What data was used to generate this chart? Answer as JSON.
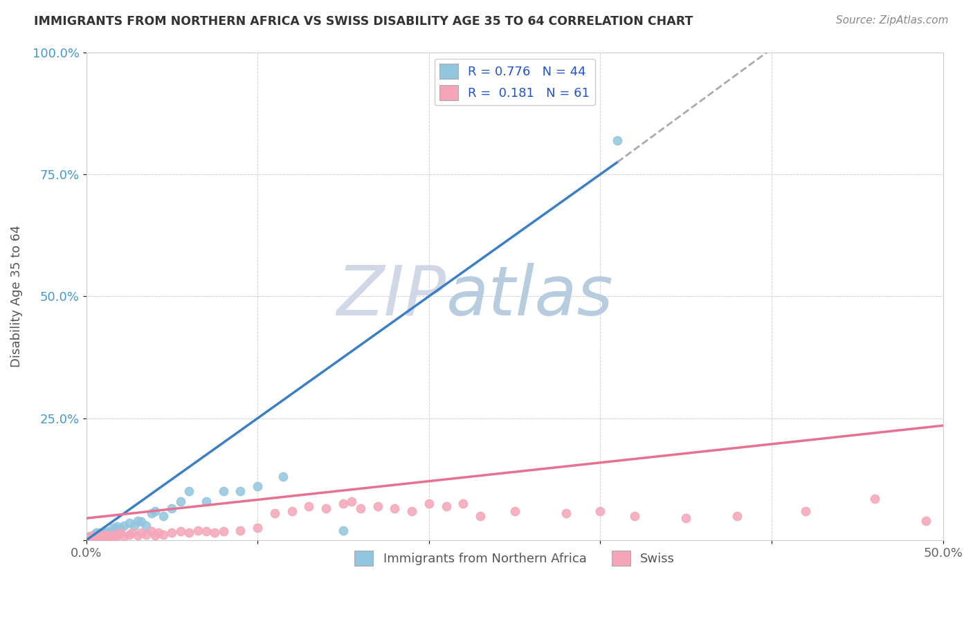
{
  "title": "IMMIGRANTS FROM NORTHERN AFRICA VS SWISS DISABILITY AGE 35 TO 64 CORRELATION CHART",
  "source": "Source: ZipAtlas.com",
  "ylabel": "Disability Age 35 to 64",
  "xlim": [
    0,
    0.5
  ],
  "ylim": [
    0,
    1.0
  ],
  "xtick_positions": [
    0.0,
    0.1,
    0.2,
    0.3,
    0.4,
    0.5
  ],
  "xtick_labels": [
    "0.0%",
    "",
    "",
    "",
    "",
    "50.0%"
  ],
  "ytick_positions": [
    0.0,
    0.25,
    0.5,
    0.75,
    1.0
  ],
  "ytick_labels": [
    "",
    "25.0%",
    "50.0%",
    "75.0%",
    "100.0%"
  ],
  "series1_R": 0.776,
  "series1_N": 44,
  "series2_R": 0.181,
  "series2_N": 61,
  "series1_color": "#92C5DE",
  "series2_color": "#F4A6B8",
  "series1_line_color": "#3A7EC6",
  "series2_line_color": "#E87090",
  "series1_line_intercept": -0.025,
  "series1_line_slope": 2.58,
  "series2_line_intercept": 0.045,
  "series2_line_slope": 0.38,
  "series1_scatter": [
    [
      0.001,
      0.005
    ],
    [
      0.002,
      0.005
    ],
    [
      0.002,
      0.008
    ],
    [
      0.003,
      0.005
    ],
    [
      0.003,
      0.008
    ],
    [
      0.004,
      0.005
    ],
    [
      0.004,
      0.01
    ],
    [
      0.005,
      0.005
    ],
    [
      0.005,
      0.01
    ],
    [
      0.006,
      0.008
    ],
    [
      0.006,
      0.015
    ],
    [
      0.007,
      0.01
    ],
    [
      0.007,
      0.015
    ],
    [
      0.008,
      0.005
    ],
    [
      0.008,
      0.012
    ],
    [
      0.009,
      0.01
    ],
    [
      0.01,
      0.008
    ],
    [
      0.01,
      0.015
    ],
    [
      0.012,
      0.015
    ],
    [
      0.013,
      0.018
    ],
    [
      0.015,
      0.018
    ],
    [
      0.016,
      0.025
    ],
    [
      0.017,
      0.02
    ],
    [
      0.018,
      0.028
    ],
    [
      0.02,
      0.022
    ],
    [
      0.022,
      0.03
    ],
    [
      0.025,
      0.035
    ],
    [
      0.028,
      0.03
    ],
    [
      0.03,
      0.04
    ],
    [
      0.032,
      0.038
    ],
    [
      0.035,
      0.03
    ],
    [
      0.038,
      0.055
    ],
    [
      0.04,
      0.06
    ],
    [
      0.045,
      0.05
    ],
    [
      0.05,
      0.065
    ],
    [
      0.055,
      0.08
    ],
    [
      0.06,
      0.1
    ],
    [
      0.07,
      0.08
    ],
    [
      0.08,
      0.1
    ],
    [
      0.09,
      0.1
    ],
    [
      0.1,
      0.11
    ],
    [
      0.115,
      0.13
    ],
    [
      0.15,
      0.02
    ],
    [
      0.31,
      0.82
    ]
  ],
  "series2_scatter": [
    [
      0.001,
      0.005
    ],
    [
      0.002,
      0.005
    ],
    [
      0.003,
      0.008
    ],
    [
      0.004,
      0.005
    ],
    [
      0.005,
      0.005
    ],
    [
      0.006,
      0.008
    ],
    [
      0.007,
      0.01
    ],
    [
      0.008,
      0.005
    ],
    [
      0.009,
      0.008
    ],
    [
      0.01,
      0.01
    ],
    [
      0.011,
      0.008
    ],
    [
      0.012,
      0.01
    ],
    [
      0.013,
      0.005
    ],
    [
      0.014,
      0.008
    ],
    [
      0.015,
      0.01
    ],
    [
      0.016,
      0.012
    ],
    [
      0.017,
      0.005
    ],
    [
      0.018,
      0.01
    ],
    [
      0.02,
      0.015
    ],
    [
      0.022,
      0.008
    ],
    [
      0.025,
      0.012
    ],
    [
      0.027,
      0.015
    ],
    [
      0.03,
      0.01
    ],
    [
      0.032,
      0.015
    ],
    [
      0.035,
      0.012
    ],
    [
      0.038,
      0.018
    ],
    [
      0.04,
      0.01
    ],
    [
      0.042,
      0.015
    ],
    [
      0.045,
      0.012
    ],
    [
      0.05,
      0.015
    ],
    [
      0.055,
      0.018
    ],
    [
      0.06,
      0.015
    ],
    [
      0.065,
      0.02
    ],
    [
      0.07,
      0.018
    ],
    [
      0.075,
      0.015
    ],
    [
      0.08,
      0.018
    ],
    [
      0.09,
      0.02
    ],
    [
      0.1,
      0.025
    ],
    [
      0.11,
      0.055
    ],
    [
      0.12,
      0.06
    ],
    [
      0.13,
      0.07
    ],
    [
      0.14,
      0.065
    ],
    [
      0.15,
      0.075
    ],
    [
      0.155,
      0.08
    ],
    [
      0.16,
      0.065
    ],
    [
      0.17,
      0.07
    ],
    [
      0.18,
      0.065
    ],
    [
      0.19,
      0.06
    ],
    [
      0.2,
      0.075
    ],
    [
      0.21,
      0.07
    ],
    [
      0.22,
      0.075
    ],
    [
      0.23,
      0.05
    ],
    [
      0.25,
      0.06
    ],
    [
      0.28,
      0.055
    ],
    [
      0.3,
      0.06
    ],
    [
      0.32,
      0.05
    ],
    [
      0.35,
      0.045
    ],
    [
      0.38,
      0.05
    ],
    [
      0.42,
      0.06
    ],
    [
      0.46,
      0.085
    ],
    [
      0.49,
      0.04
    ]
  ],
  "dashed_ext_color": "#AAAAAA",
  "watermark_zip": "ZIP",
  "watermark_atlas": "atlas",
  "watermark_zip_color": "#D0D8E8",
  "watermark_atlas_color": "#B8CCE0",
  "background_color": "#FFFFFF",
  "grid_color": "#CCCCCC"
}
